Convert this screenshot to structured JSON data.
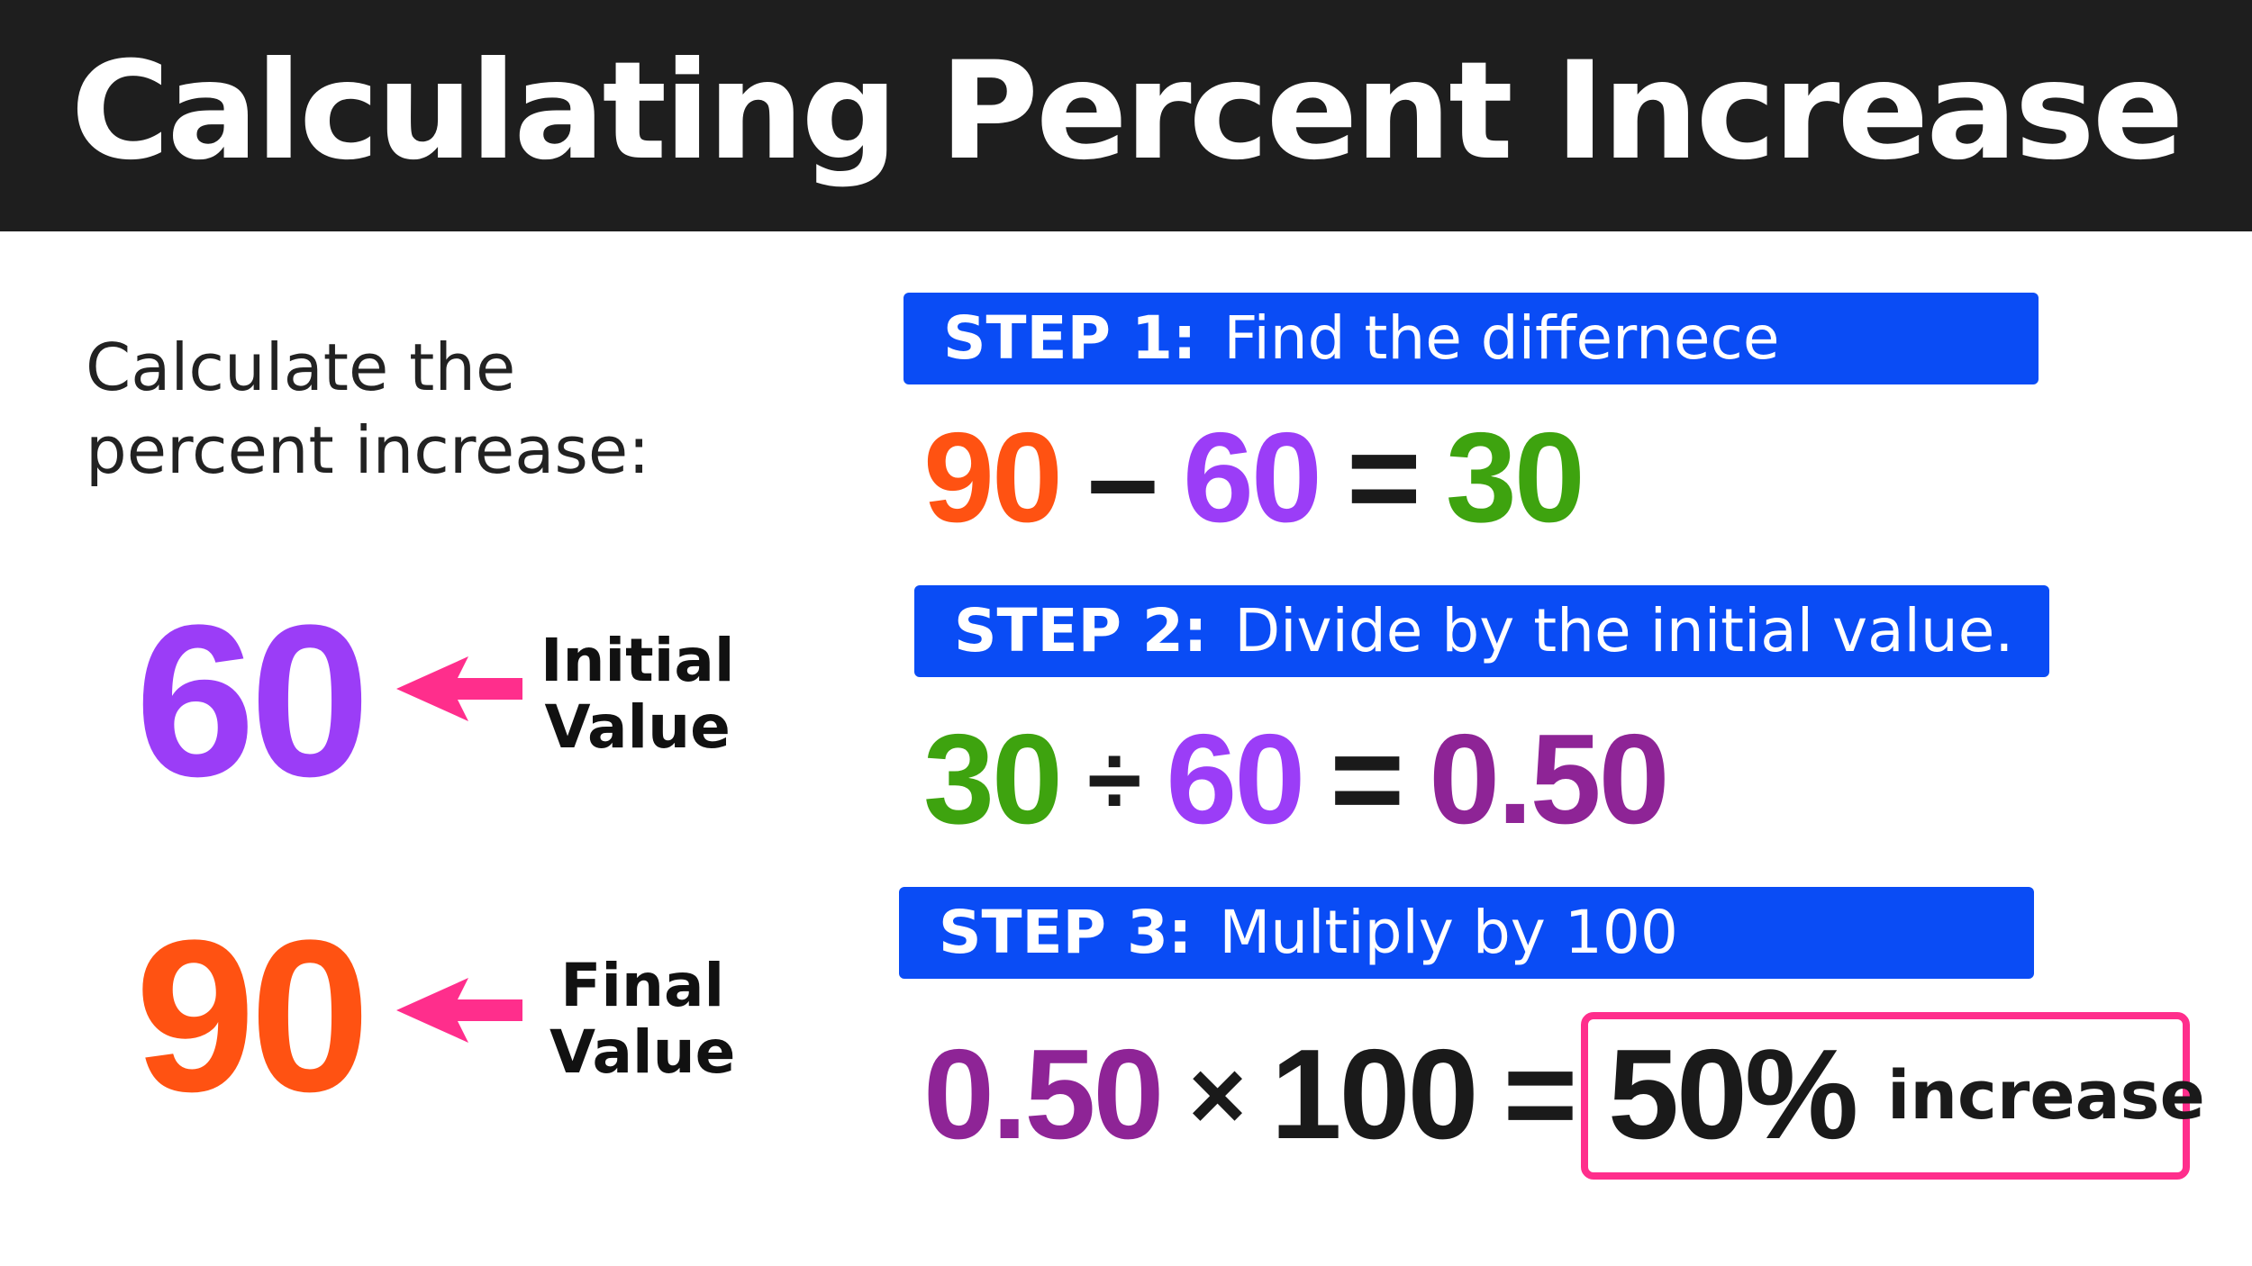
{
  "title": "Calculating Percent Increase",
  "prompt": {
    "line1": "Calculate the",
    "line2": "percent increase:"
  },
  "initial": {
    "value": "60",
    "label_line1": "Initial",
    "label_line2": "Value"
  },
  "final": {
    "value": "90",
    "label_line1": "Final",
    "label_line2": "Value"
  },
  "steps": [
    {
      "key": "STEP 1:",
      "text": "Find the differnece",
      "equation": [
        "90",
        "–",
        "60",
        "=",
        "30"
      ]
    },
    {
      "key": "STEP 2:",
      "text": "Divide by the initial value.",
      "equation": [
        "30",
        "÷",
        "60",
        "=",
        "0.50"
      ]
    },
    {
      "key": "STEP 3:",
      "text": "Multiply by 100",
      "equation": [
        "0.50",
        "×",
        "100",
        "="
      ]
    }
  ],
  "result": {
    "percent": "50%",
    "word": "increase"
  },
  "colors": {
    "banner": "#1e1e1e",
    "step_bar": "#0a4cf5",
    "initial_purple": "#9b3df7",
    "final_orange": "#ff5212",
    "difference_green": "#3ea30f",
    "ratio_purple": "#8e2496",
    "arrow_pink": "#ff2e8c"
  }
}
